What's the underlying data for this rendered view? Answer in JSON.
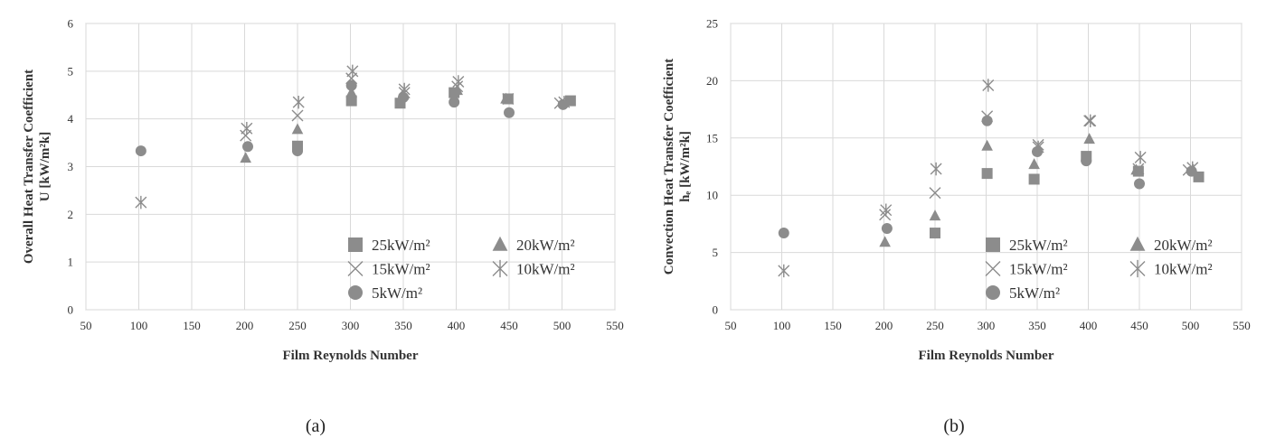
{
  "chart_data": [
    {
      "type": "scatter",
      "panel_label": "(a)",
      "xlabel": "Film Reynolds Number",
      "ylabel_line1": "Overall Heat Transfer Coefficient",
      "ylabel_line2": "U [kW/m²k]",
      "xlim": [
        50,
        550
      ],
      "ylim": [
        0,
        6
      ],
      "xticks": [
        50,
        100,
        150,
        200,
        250,
        300,
        350,
        400,
        450,
        500,
        550
      ],
      "yticks": [
        0,
        1,
        2,
        3,
        4,
        5,
        6
      ],
      "grid": true,
      "legend_position": "bottom-right",
      "legend_columns": 2,
      "series": [
        {
          "name": "25kW/m²",
          "marker": "square",
          "points": [
            [
              250,
              3.43
            ],
            [
              301,
              4.38
            ],
            [
              347,
              4.33
            ],
            [
              398,
              4.55
            ],
            [
              449,
              4.42
            ],
            [
              508,
              4.38
            ]
          ]
        },
        {
          "name": "20kW/m²",
          "marker": "triangle",
          "points": [
            [
              201,
              3.18
            ],
            [
              250,
              3.78
            ],
            [
              301,
              4.55
            ],
            [
              350,
              4.5
            ],
            [
              401,
              4.6
            ],
            [
              447,
              4.42
            ]
          ]
        },
        {
          "name": "15kW/m²",
          "marker": "x",
          "points": [
            [
              201,
              3.65
            ],
            [
              250,
              4.07
            ],
            [
              301,
              4.85
            ],
            [
              351,
              4.55
            ],
            [
              401,
              4.68
            ],
            [
              449,
              4.42
            ],
            [
              498,
              4.33
            ]
          ]
        },
        {
          "name": "10kW/m²",
          "marker": "star",
          "points": [
            [
              102,
              2.25
            ],
            [
              202,
              3.8
            ],
            [
              251,
              4.35
            ],
            [
              302,
              5.0
            ],
            [
              351,
              4.62
            ],
            [
              402,
              4.78
            ],
            [
              502,
              4.35
            ]
          ]
        },
        {
          "name": "5kW/m²",
          "marker": "circle",
          "points": [
            [
              102,
              3.33
            ],
            [
              203,
              3.42
            ],
            [
              250,
              3.33
            ],
            [
              301,
              4.7
            ],
            [
              350,
              4.45
            ],
            [
              398,
              4.35
            ],
            [
              450,
              4.13
            ],
            [
              501,
              4.3
            ]
          ]
        }
      ]
    },
    {
      "type": "scatter",
      "panel_label": "(b)",
      "xlabel": "Film Reynolds Number",
      "ylabel_line1": "Convection Heat Transfer Coefficient",
      "ylabel_line2": "hₑ [kW/m²k]",
      "xlim": [
        50,
        550
      ],
      "ylim": [
        0,
        25
      ],
      "xticks": [
        50,
        100,
        150,
        200,
        250,
        300,
        350,
        400,
        450,
        500,
        550
      ],
      "yticks": [
        0,
        5,
        10,
        15,
        20,
        25
      ],
      "grid": true,
      "legend_position": "bottom-right",
      "legend_columns": 2,
      "series": [
        {
          "name": "25kW/m²",
          "marker": "square",
          "points": [
            [
              250,
              6.7
            ],
            [
              301,
              11.9
            ],
            [
              347,
              11.4
            ],
            [
              398,
              13.4
            ],
            [
              449,
              12.1
            ],
            [
              508,
              11.6
            ]
          ]
        },
        {
          "name": "20kW/m²",
          "marker": "triangle",
          "points": [
            [
              201,
              5.9
            ],
            [
              250,
              8.2
            ],
            [
              301,
              14.3
            ],
            [
              347,
              12.7
            ],
            [
              401,
              14.9
            ],
            [
              447,
              12.2
            ]
          ]
        },
        {
          "name": "15kW/m²",
          "marker": "x",
          "points": [
            [
              201,
              8.3
            ],
            [
              250,
              10.2
            ],
            [
              301,
              16.9
            ],
            [
              351,
              14.4
            ],
            [
              401,
              16.5
            ],
            [
              449,
              12.3
            ],
            [
              498,
              12.2
            ]
          ]
        },
        {
          "name": "10kW/m²",
          "marker": "star",
          "points": [
            [
              102,
              3.4
            ],
            [
              202,
              8.7
            ],
            [
              251,
              12.3
            ],
            [
              302,
              19.6
            ],
            [
              351,
              14.2
            ],
            [
              402,
              16.5
            ],
            [
              451,
              13.3
            ],
            [
              502,
              12.4
            ]
          ]
        },
        {
          "name": "5kW/m²",
          "marker": "circle",
          "points": [
            [
              102,
              6.7
            ],
            [
              203,
              7.1
            ],
            [
              301,
              16.5
            ],
            [
              350,
              13.8
            ],
            [
              398,
              13.0
            ],
            [
              450,
              11.0
            ],
            [
              501,
              12.1
            ]
          ]
        }
      ]
    }
  ]
}
